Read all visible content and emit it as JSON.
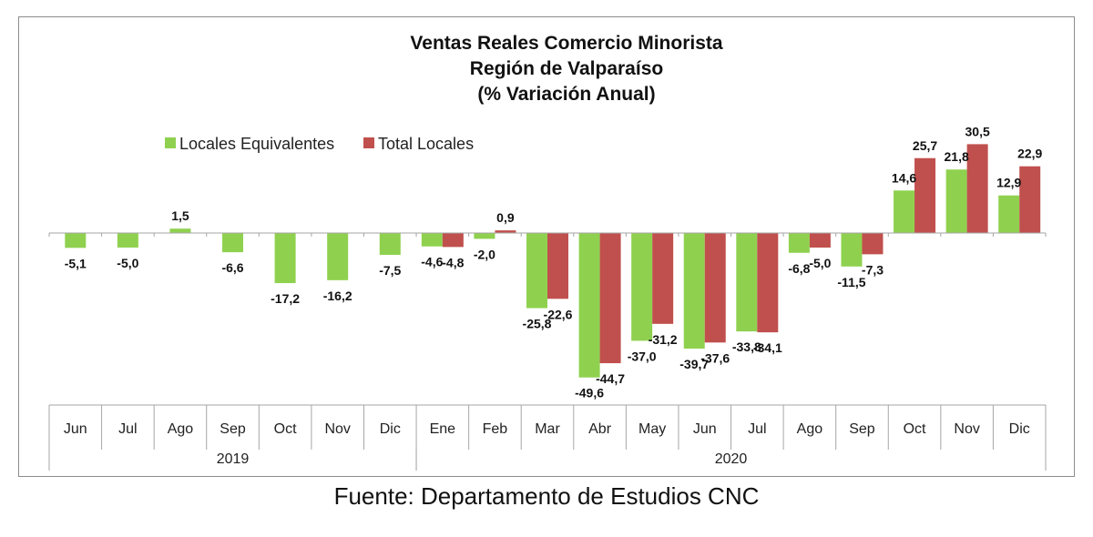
{
  "source": "Fuente: Departamento de Estudios CNC",
  "chart_data": {
    "type": "bar",
    "title": [
      "Ventas Reales Comercio Minorista",
      "Región de Valparaíso",
      "(% Variación Anual)"
    ],
    "categories": [
      "Jun",
      "Jul",
      "Ago",
      "Sep",
      "Oct",
      "Nov",
      "Dic",
      "Ene",
      "Feb",
      "Mar",
      "Abr",
      "May",
      "Jun",
      "Jul",
      "Ago",
      "Sep",
      "Oct",
      "Nov",
      "Dic"
    ],
    "groups": [
      {
        "label": "2019",
        "start": 0,
        "end": 6
      },
      {
        "label": "2020",
        "start": 7,
        "end": 18
      }
    ],
    "series": [
      {
        "name": "Locales Equivalentes",
        "color": "#8fd14f",
        "values": [
          -5.1,
          -5.0,
          1.5,
          -6.6,
          -17.2,
          -16.2,
          -7.5,
          -4.6,
          -2.0,
          -25.8,
          -49.6,
          -37.0,
          -39.7,
          -33.8,
          -6.8,
          -11.5,
          14.6,
          21.8,
          12.9
        ],
        "labels": [
          "-5,1",
          "-5,0",
          "1,5",
          "-6,6",
          "-17,2",
          "-16,2",
          "-7,5",
          "-4,6",
          "-2,0",
          "-25,8",
          "-49,6",
          "-37,0",
          "-39,7",
          "-33,8",
          "-6,8",
          "-11,5",
          "14,6",
          "21,8",
          "12,9"
        ]
      },
      {
        "name": "Total Locales",
        "color": "#c0504d",
        "values": [
          null,
          null,
          null,
          null,
          null,
          null,
          null,
          -4.8,
          0.9,
          -22.6,
          -44.7,
          -31.2,
          -37.6,
          -34.1,
          -5.0,
          -7.3,
          25.7,
          30.5,
          22.9
        ],
        "labels": [
          "",
          "",
          "",
          "",
          "",
          "",
          "",
          "-4,8",
          "0,9",
          "-22,6",
          "-44,7",
          "-31,2",
          "-37,6",
          "-34,1",
          "-5,0",
          "-7,3",
          "25,7",
          "30,5",
          "22,9"
        ]
      }
    ],
    "legend_position": "top-left",
    "grid": false
  }
}
